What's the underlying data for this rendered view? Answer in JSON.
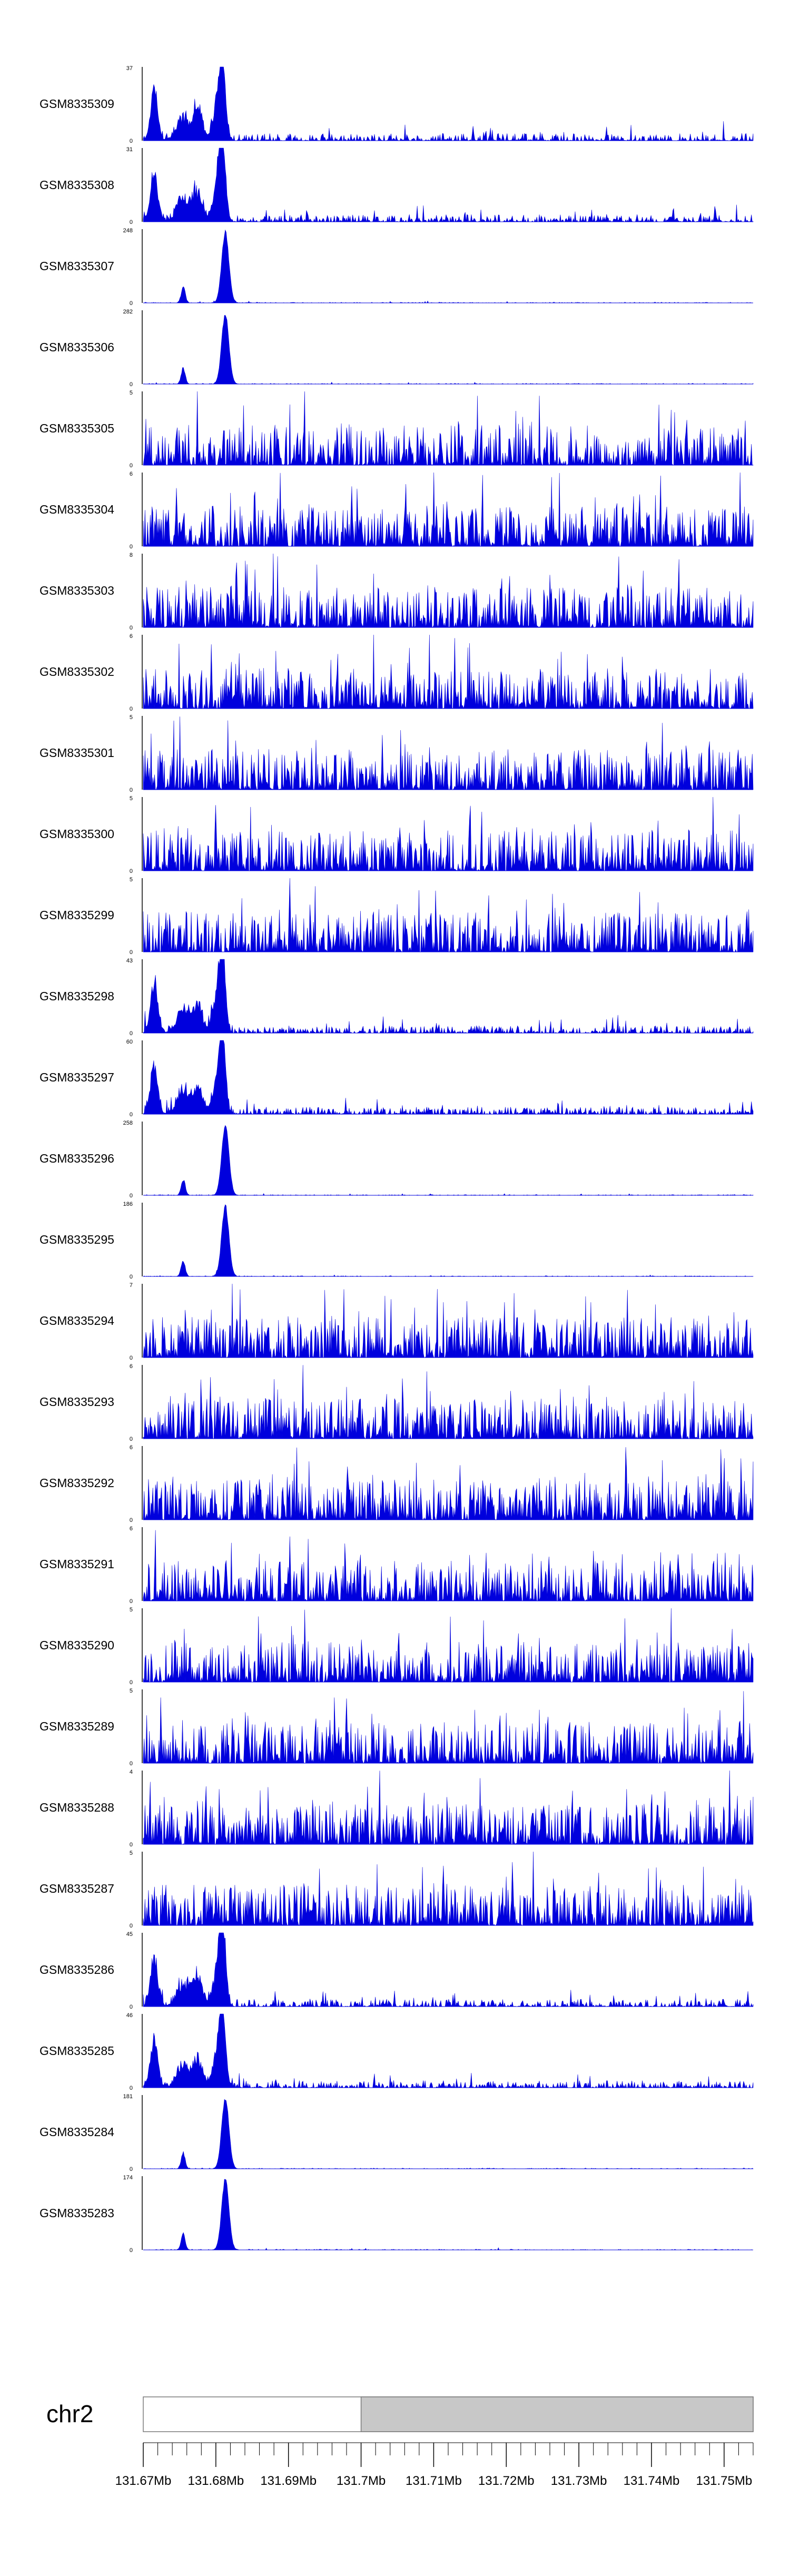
{
  "chart_data": {
    "type": "area",
    "series_color": "#0000dd",
    "x_range_mb": [
      131.67,
      131.754
    ],
    "chromosome": "chr2",
    "highlight_start_mb": 131.7,
    "highlight_color": "#c8c8c8",
    "x_ticks": [
      "131.67Mb",
      "131.68Mb",
      "131.69Mb",
      "131.7Mb",
      "131.71Mb",
      "131.72Mb",
      "131.73Mb",
      "131.74Mb",
      "131.75Mb"
    ],
    "tracks": [
      {
        "name": "GSM8335309",
        "max": "37",
        "min": "0",
        "profile": "mixed"
      },
      {
        "name": "GSM8335308",
        "max": "31",
        "min": "0",
        "profile": "mixed"
      },
      {
        "name": "GSM8335307",
        "max": "248",
        "min": "0",
        "profile": "peak"
      },
      {
        "name": "GSM8335306",
        "max": "282",
        "min": "0",
        "profile": "peak"
      },
      {
        "name": "GSM8335305",
        "max": "5",
        "min": "0",
        "profile": "noise"
      },
      {
        "name": "GSM8335304",
        "max": "6",
        "min": "0",
        "profile": "noise"
      },
      {
        "name": "GSM8335303",
        "max": "8",
        "min": "0",
        "profile": "noise"
      },
      {
        "name": "GSM8335302",
        "max": "6",
        "min": "0",
        "profile": "noise"
      },
      {
        "name": "GSM8335301",
        "max": "5",
        "min": "0",
        "profile": "noise"
      },
      {
        "name": "GSM8335300",
        "max": "5",
        "min": "0",
        "profile": "noise"
      },
      {
        "name": "GSM8335299",
        "max": "5",
        "min": "0",
        "profile": "noise"
      },
      {
        "name": "GSM8335298",
        "max": "43",
        "min": "0",
        "profile": "mixed"
      },
      {
        "name": "GSM8335297",
        "max": "60",
        "min": "0",
        "profile": "mixed"
      },
      {
        "name": "GSM8335296",
        "max": "258",
        "min": "0",
        "profile": "peak"
      },
      {
        "name": "GSM8335295",
        "max": "186",
        "min": "0",
        "profile": "peak"
      },
      {
        "name": "GSM8335294",
        "max": "7",
        "min": "0",
        "profile": "noise"
      },
      {
        "name": "GSM8335293",
        "max": "6",
        "min": "0",
        "profile": "noise"
      },
      {
        "name": "GSM8335292",
        "max": "6",
        "min": "0",
        "profile": "noise"
      },
      {
        "name": "GSM8335291",
        "max": "6",
        "min": "0",
        "profile": "noise"
      },
      {
        "name": "GSM8335290",
        "max": "5",
        "min": "0",
        "profile": "noise"
      },
      {
        "name": "GSM8335289",
        "max": "5",
        "min": "0",
        "profile": "noise"
      },
      {
        "name": "GSM8335288",
        "max": "4",
        "min": "0",
        "profile": "noise"
      },
      {
        "name": "GSM8335287",
        "max": "5",
        "min": "0",
        "profile": "noise"
      },
      {
        "name": "GSM8335286",
        "max": "45",
        "min": "0",
        "profile": "mixed"
      },
      {
        "name": "GSM8335285",
        "max": "46",
        "min": "0",
        "profile": "mixed"
      },
      {
        "name": "GSM8335284",
        "max": "181",
        "min": "0",
        "profile": "peak"
      },
      {
        "name": "GSM8335283",
        "max": "174",
        "min": "0",
        "profile": "peak"
      }
    ]
  }
}
